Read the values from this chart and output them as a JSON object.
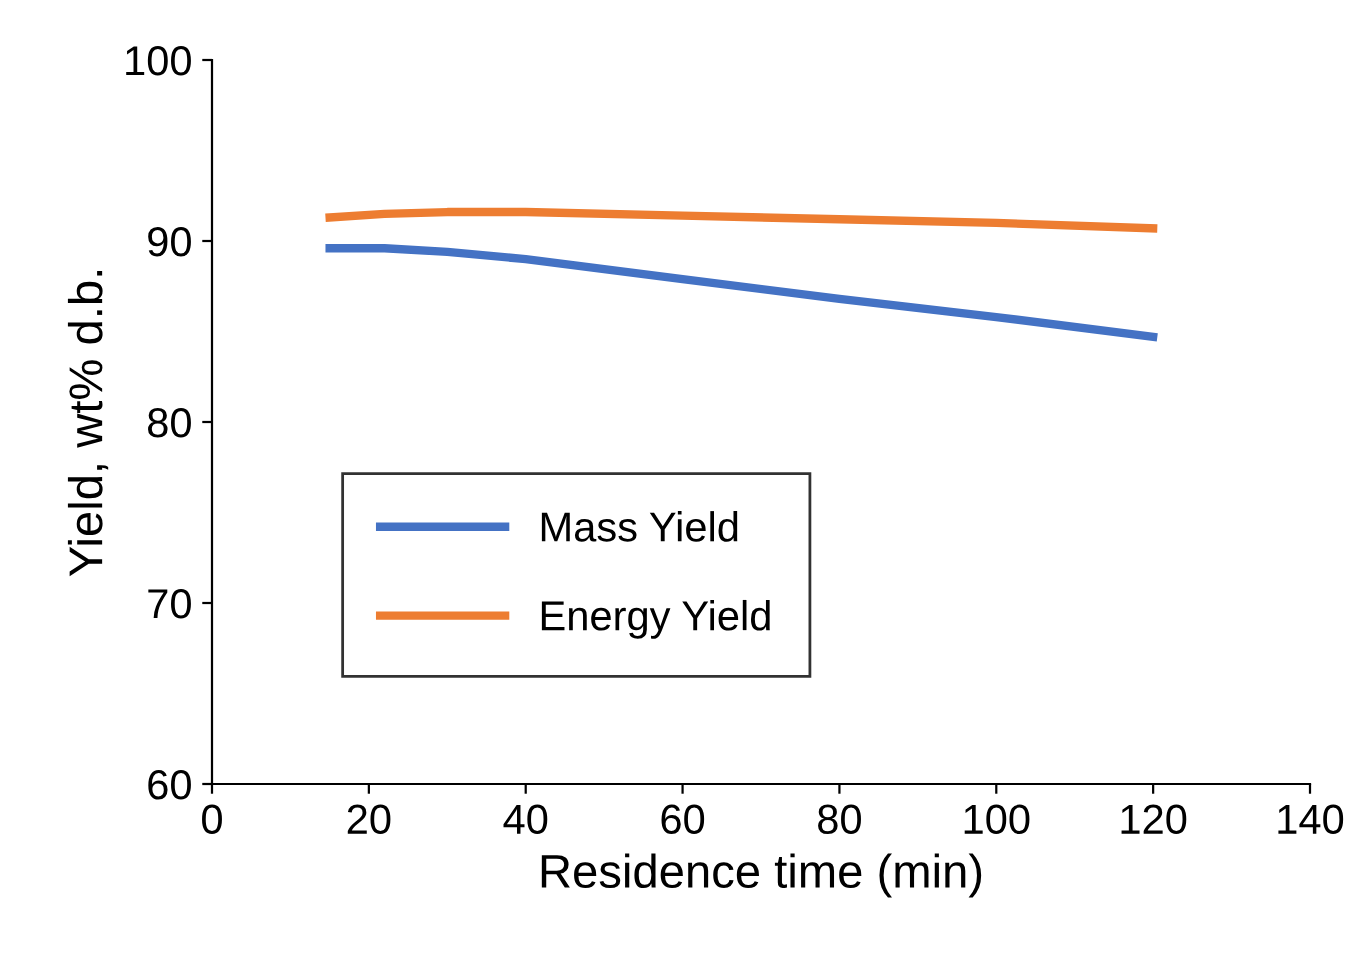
{
  "chart_data": {
    "type": "line",
    "xlabel": "Residence time (min)",
    "ylabel": "Yield, wt% d.b.",
    "xlim": [
      0,
      140
    ],
    "xticks": [
      0,
      20,
      40,
      60,
      80,
      100,
      120,
      140
    ],
    "ylim": [
      60,
      100
    ],
    "yticks": [
      60,
      70,
      80,
      90,
      100
    ],
    "grid": false,
    "legend": "bottom left",
    "marker": "none",
    "line_style": "solid",
    "series": [
      {
        "name": "Mass Yield",
        "color": "#4472c4",
        "x": [
          15,
          22,
          30,
          40,
          60,
          80,
          100,
          120
        ],
        "values": [
          89.6,
          89.6,
          89.4,
          89.0,
          87.9,
          86.8,
          85.8,
          84.7
        ]
      },
      {
        "name": "Energy Yield",
        "color": "#ed7d31",
        "x": [
          15,
          22,
          30,
          40,
          60,
          80,
          100,
          120
        ],
        "values": [
          91.3,
          91.5,
          91.6,
          91.6,
          91.4,
          91.2,
          91.0,
          90.7
        ]
      }
    ]
  }
}
